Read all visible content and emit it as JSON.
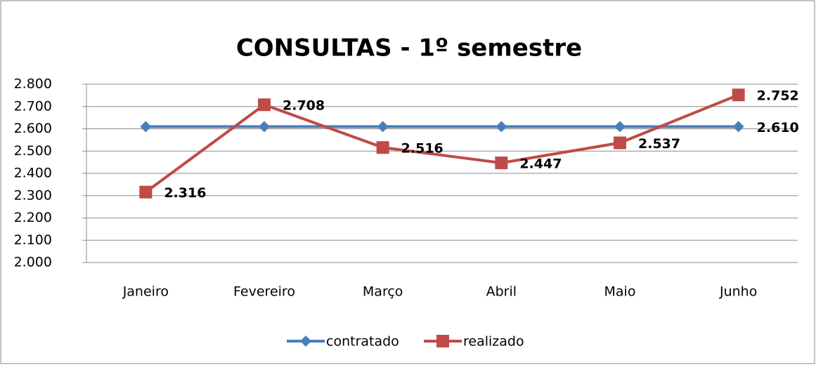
{
  "chart_data": {
    "type": "line",
    "title": "CONSULTAS - 1º semestre",
    "categories": [
      "Janeiro",
      "Fevereiro",
      "Março",
      "Abril",
      "Maio",
      "Junho"
    ],
    "series": [
      {
        "name": "contratado",
        "color": "#4a7ebb",
        "marker": "diamond",
        "values": [
          2610,
          2610,
          2610,
          2610,
          2610,
          2610
        ],
        "value_labels": [
          null,
          null,
          null,
          null,
          null,
          "2.610"
        ]
      },
      {
        "name": "realizado",
        "color": "#be4b48",
        "marker": "square",
        "values": [
          2316,
          2708,
          2516,
          2447,
          2537,
          2752
        ],
        "value_labels": [
          "2.316",
          "2.708",
          "2.516",
          "2.447",
          "2.537",
          "2.752"
        ]
      }
    ],
    "ylim": [
      2000,
      2800
    ],
    "yticks": [
      {
        "value": 2000,
        "label": "2.000"
      },
      {
        "value": 2100,
        "label": "2.100"
      },
      {
        "value": 2200,
        "label": "2.200"
      },
      {
        "value": 2300,
        "label": "2.300"
      },
      {
        "value": 2400,
        "label": "2.400"
      },
      {
        "value": 2500,
        "label": "2.500"
      },
      {
        "value": 2600,
        "label": "2.600"
      },
      {
        "value": 2700,
        "label": "2.700"
      },
      {
        "value": 2800,
        "label": "2.800"
      }
    ],
    "grid": true,
    "legend": "bottom"
  }
}
